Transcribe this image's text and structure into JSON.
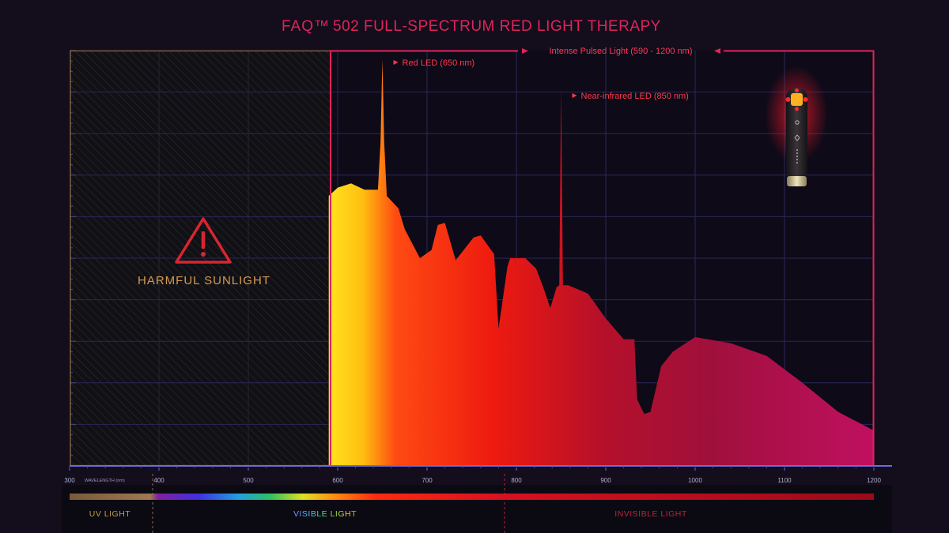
{
  "title": {
    "brand": "FAQ™",
    "text": "502 FULL-SPECTRUM RED LIGHT THERAPY"
  },
  "ipl_label": "Intense Pulsed Light (590 - 1200 nm)",
  "harmful": {
    "label": "HARMFUL SUNLIGHT",
    "icon": "warning-triangle-icon",
    "color": "#d8262e"
  },
  "bands": [
    {
      "label": "UV LIGHT",
      "color": "#c79a3c"
    },
    {
      "label": "VISIBLE LIGHT",
      "color": "gradient"
    },
    {
      "label": "INVISIBLE LIGHT",
      "color": "#c21f36"
    }
  ],
  "device": {
    "icon": "light-therapy-wand-icon"
  },
  "colors": {
    "background": "#130d1c",
    "plot": "#0e0a18",
    "accent": "#e0245a",
    "axis": "#5a5ce0",
    "grid": "#2c2a60"
  },
  "chart_data": {
    "type": "area",
    "xlabel": "WAVELENGTH (nm)",
    "xlim": [
      300,
      1200
    ],
    "x_ticks": [
      300,
      400,
      500,
      600,
      700,
      800,
      900,
      1000,
      1100,
      1200
    ],
    "ylim": [
      0,
      100
    ],
    "grid": true,
    "series": [
      {
        "x": [
          590,
          600,
          615,
          630,
          645,
          648,
          650,
          652,
          655,
          668,
          675,
          692,
          705,
          712,
          720,
          732,
          752,
          760,
          775,
          780,
          790,
          793,
          800,
          810,
          822,
          830,
          838,
          845,
          848,
          850,
          852,
          858,
          880,
          900,
          920,
          932,
          935,
          943,
          950,
          962,
          975,
          1000,
          1040,
          1080,
          1120,
          1160,
          1200
        ],
        "y": [
          65,
          67,
          68,
          66.5,
          66.5,
          78,
          98,
          78,
          65,
          62,
          57,
          50,
          52,
          58,
          58.5,
          49.5,
          55,
          55.5,
          51,
          33,
          48,
          50,
          50,
          50,
          47.5,
          43,
          38,
          43,
          43.5,
          91,
          43.5,
          43.5,
          41.5,
          35.5,
          30.5,
          30.5,
          16,
          12.5,
          13,
          24,
          27.5,
          31,
          29.5,
          26.5,
          20,
          13,
          8.5
        ]
      }
    ],
    "peaks": [
      {
        "label": "Red LED (650 nm)",
        "x": 650
      },
      {
        "label": "Near-infrared LED (850 nm)",
        "x": 850
      }
    ]
  }
}
